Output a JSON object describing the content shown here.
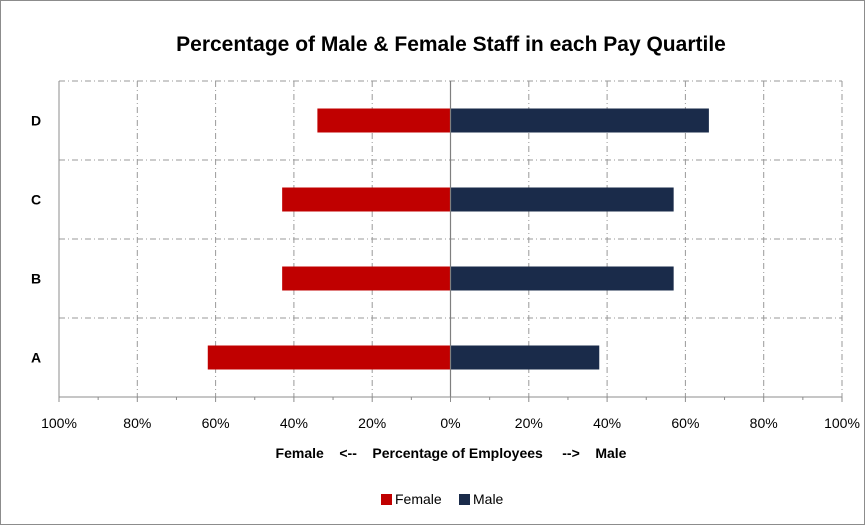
{
  "chart_data": {
    "type": "bar",
    "orientation": "horizontal-diverging",
    "title": "Percentage of  Male & Female Staff in each Pay Quartile",
    "xlabel": "Female    <--    Percentage of Employees     -->    Male",
    "categories": [
      "D",
      "C",
      "B",
      "A"
    ],
    "series": [
      {
        "name": "Female",
        "values": [
          34,
          43,
          43,
          62
        ],
        "color": "#c00000",
        "direction": "left"
      },
      {
        "name": "Male",
        "values": [
          66,
          57,
          57,
          38
        ],
        "color": "#1a2b4a",
        "direction": "right"
      }
    ],
    "xlim": [
      -100,
      100
    ],
    "x_ticks": [
      -100,
      -80,
      -60,
      -40,
      -20,
      0,
      20,
      40,
      60,
      80,
      100
    ],
    "x_tick_labels": [
      "100%",
      "80%",
      "60%",
      "40%",
      "20%",
      "0%",
      "20%",
      "40%",
      "60%",
      "80%",
      "100%"
    ],
    "grid": true,
    "legend_position": "bottom"
  }
}
